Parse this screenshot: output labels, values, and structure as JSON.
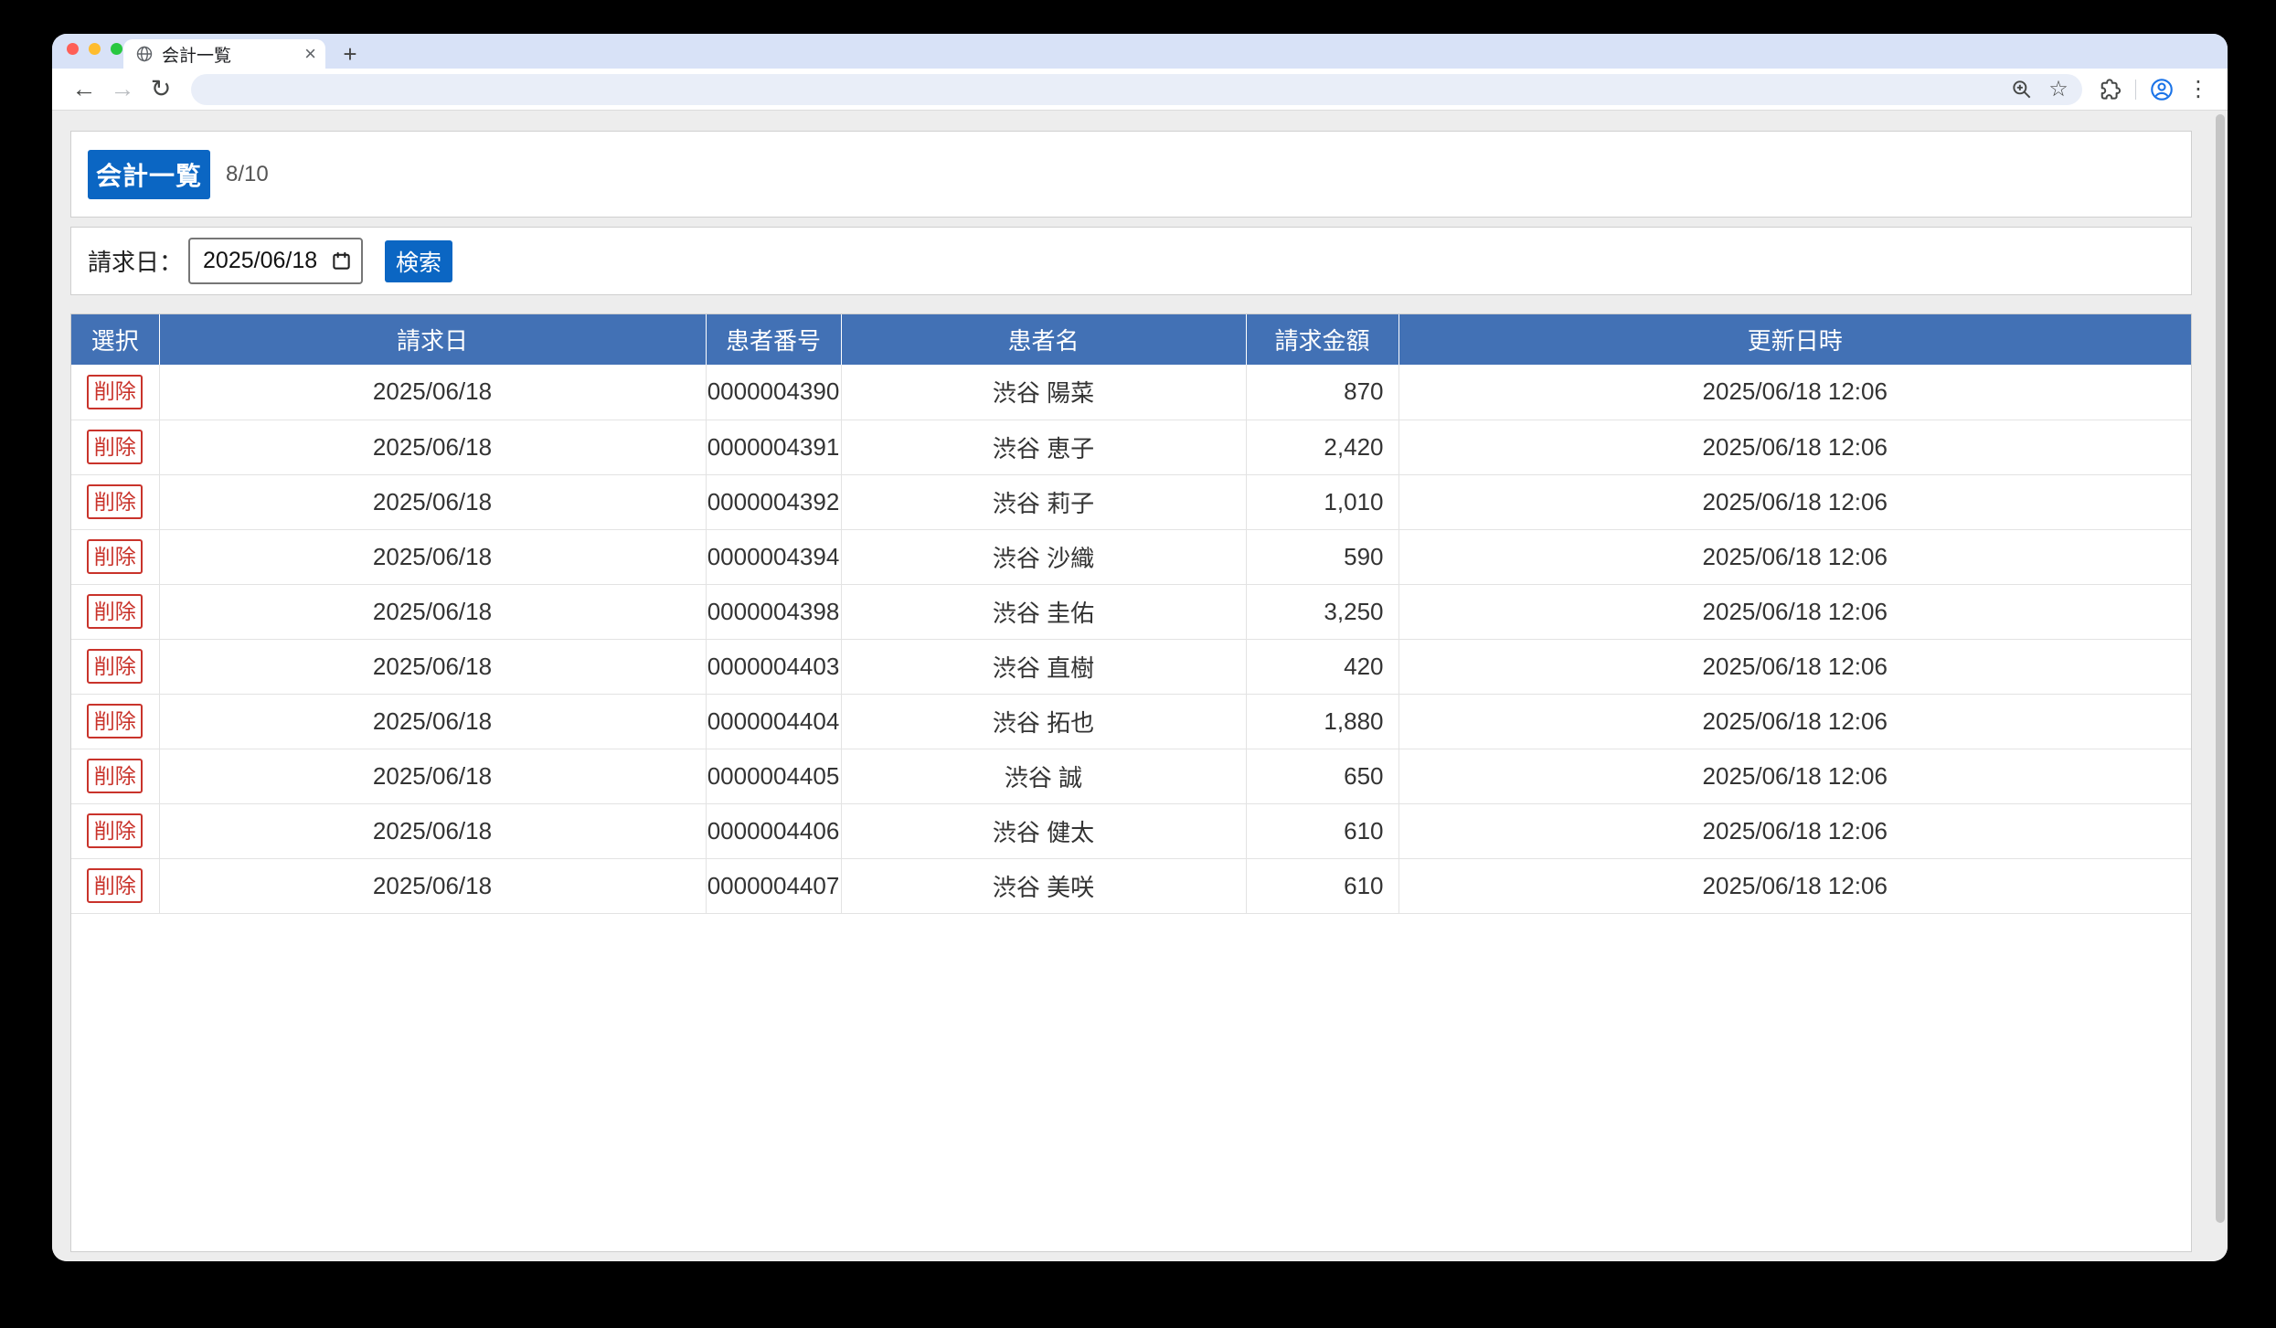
{
  "browser": {
    "tab_title": "会計一覧",
    "close_tab_glyph": "×",
    "new_tab_glyph": "+",
    "back_glyph": "←",
    "forward_glyph": "→",
    "refresh_glyph": "↻",
    "bookmark_star_glyph": "☆",
    "menu_dots_glyph": "⋮",
    "address_value": "",
    "traffic_lights": {
      "close": "#ff5f57",
      "minimize": "#febc2e",
      "zoom": "#28c840"
    }
  },
  "header": {
    "title_button": "会計一覧",
    "page_count": "8/10"
  },
  "search": {
    "label": "請求日：",
    "date_value": "2025/06/18",
    "button_label": "検索"
  },
  "table": {
    "columns": [
      "選択",
      "請求日",
      "患者番号",
      "患者名",
      "請求金額",
      "更新日時"
    ],
    "delete_label": "削除",
    "rows": [
      {
        "billing_date": "2025/06/18",
        "patient_no": "0000004390",
        "patient_name": "渋谷 陽菜",
        "amount": "870",
        "updated_at": "2025/06/18 12:06"
      },
      {
        "billing_date": "2025/06/18",
        "patient_no": "0000004391",
        "patient_name": "渋谷 恵子",
        "amount": "2,420",
        "updated_at": "2025/06/18 12:06"
      },
      {
        "billing_date": "2025/06/18",
        "patient_no": "0000004392",
        "patient_name": "渋谷 莉子",
        "amount": "1,010",
        "updated_at": "2025/06/18 12:06"
      },
      {
        "billing_date": "2025/06/18",
        "patient_no": "0000004394",
        "patient_name": "渋谷 沙織",
        "amount": "590",
        "updated_at": "2025/06/18 12:06"
      },
      {
        "billing_date": "2025/06/18",
        "patient_no": "0000004398",
        "patient_name": "渋谷 圭佑",
        "amount": "3,250",
        "updated_at": "2025/06/18 12:06"
      },
      {
        "billing_date": "2025/06/18",
        "patient_no": "0000004403",
        "patient_name": "渋谷 直樹",
        "amount": "420",
        "updated_at": "2025/06/18 12:06"
      },
      {
        "billing_date": "2025/06/18",
        "patient_no": "0000004404",
        "patient_name": "渋谷 拓也",
        "amount": "1,880",
        "updated_at": "2025/06/18 12:06"
      },
      {
        "billing_date": "2025/06/18",
        "patient_no": "0000004405",
        "patient_name": "渋谷 誠",
        "amount": "650",
        "updated_at": "2025/06/18 12:06"
      },
      {
        "billing_date": "2025/06/18",
        "patient_no": "0000004406",
        "patient_name": "渋谷 健太",
        "amount": "610",
        "updated_at": "2025/06/18 12:06"
      },
      {
        "billing_date": "2025/06/18",
        "patient_no": "0000004407",
        "patient_name": "渋谷 美咲",
        "amount": "610",
        "updated_at": "2025/06/18 12:06"
      }
    ]
  },
  "colors": {
    "accent_blue": "#0b66c3",
    "table_header_blue": "#4271b5",
    "delete_red": "#c9332b"
  }
}
